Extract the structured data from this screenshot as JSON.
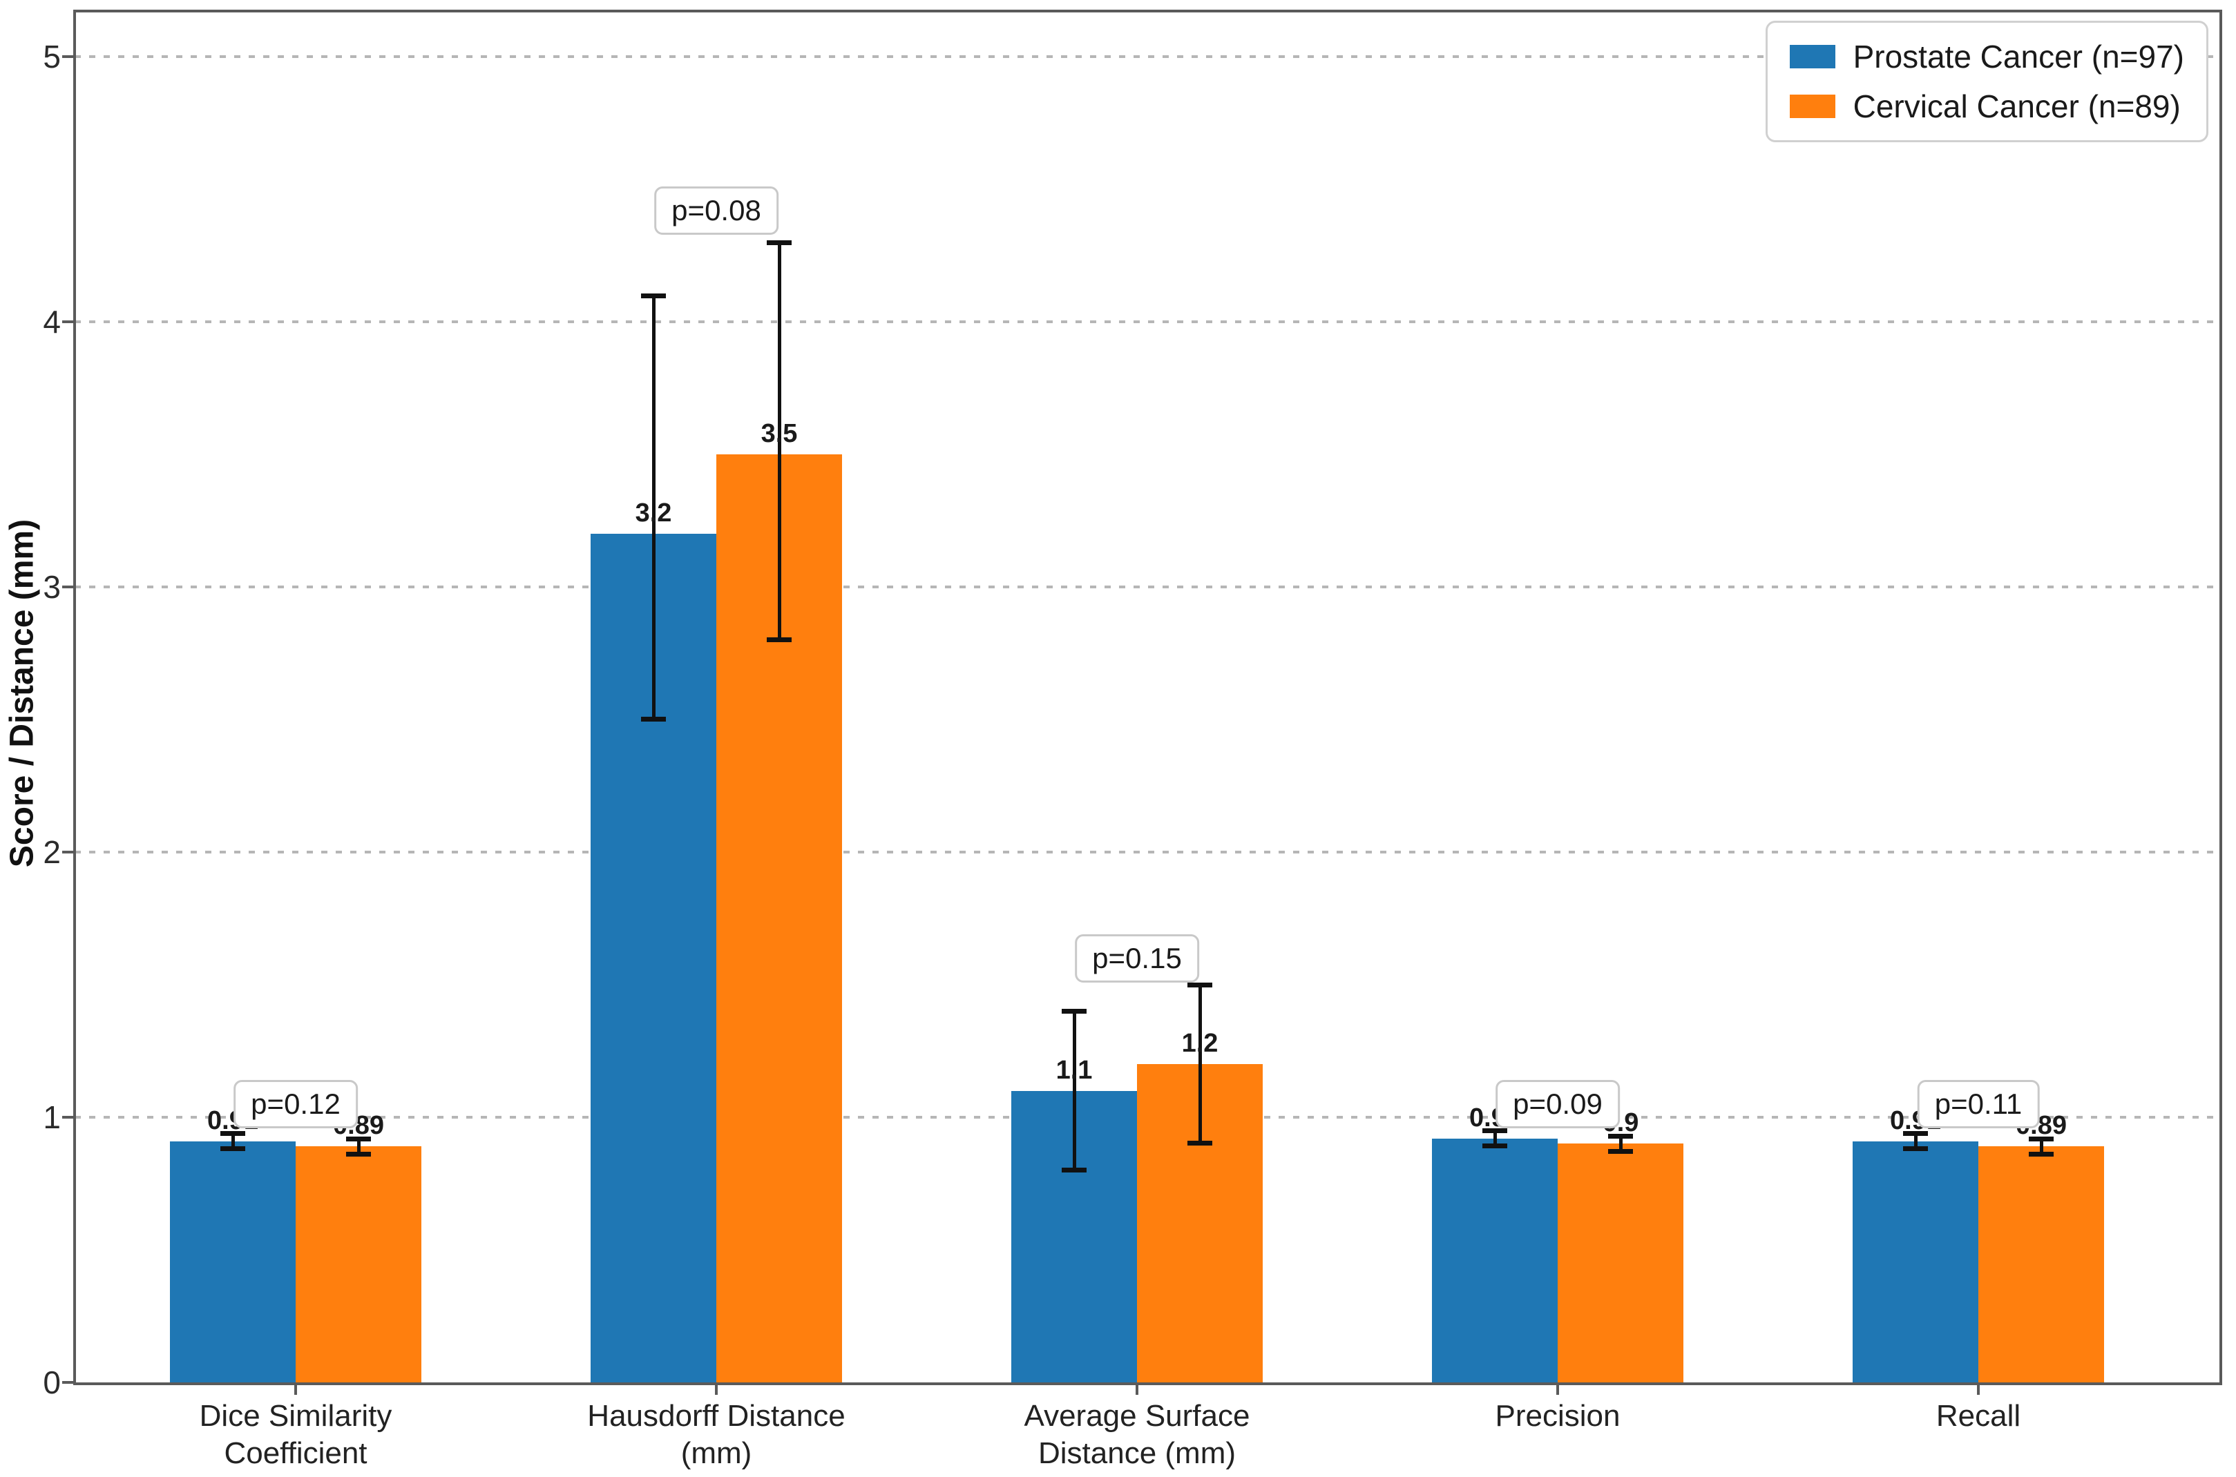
{
  "chart_data": {
    "type": "bar",
    "title": "",
    "ylabel": "Score / Distance (mm)",
    "xlabel": "",
    "ylim": [
      0,
      5.17
    ],
    "yticks": [
      0,
      1,
      2,
      3,
      4,
      5
    ],
    "grid": "dotted-horizontal",
    "legend_position": "upper-right",
    "categories": [
      {
        "label": "Dice Similarity Coefficient",
        "lines": [
          "Dice Similarity",
          "Coefficient"
        ]
      },
      {
        "label": "Hausdorff Distance (mm)",
        "lines": [
          "Hausdorff Distance",
          "(mm)"
        ]
      },
      {
        "label": "Average Surface Distance (mm)",
        "lines": [
          "Average Surface",
          "Distance (mm)"
        ]
      },
      {
        "label": "Precision",
        "lines": [
          "Precision"
        ]
      },
      {
        "label": "Recall",
        "lines": [
          "Recall"
        ]
      }
    ],
    "series": [
      {
        "name": "Prostate Cancer (n=97)",
        "color": "#1f77b4",
        "values": [
          0.91,
          3.2,
          1.1,
          0.92,
          0.91
        ],
        "err_low": [
          0.03,
          0.7,
          0.3,
          0.03,
          0.03
        ],
        "err_high": [
          0.03,
          0.9,
          0.3,
          0.03,
          0.03
        ],
        "value_labels": [
          "0.91",
          "3.2",
          "1.1",
          "0.92",
          "0.91"
        ]
      },
      {
        "name": "Cervical Cancer (n=89)",
        "color": "#ff7f0e",
        "values": [
          0.89,
          3.5,
          1.2,
          0.9,
          0.89
        ],
        "err_low": [
          0.03,
          0.7,
          0.3,
          0.03,
          0.03
        ],
        "err_high": [
          0.03,
          0.8,
          0.3,
          0.03,
          0.03
        ],
        "value_labels": [
          "0.89",
          "3.5",
          "1.2",
          "0.9",
          "0.89"
        ]
      }
    ],
    "p_values": [
      {
        "label": "p=0.12",
        "y": 1.05
      },
      {
        "label": "p=0.08",
        "y": 4.42
      },
      {
        "label": "p=0.15",
        "y": 1.6
      },
      {
        "label": "p=0.09",
        "y": 1.05
      },
      {
        "label": "p=0.11",
        "y": 1.05
      }
    ],
    "error_bar_color": "#111111",
    "gridline_color": "#b6b6b6"
  }
}
